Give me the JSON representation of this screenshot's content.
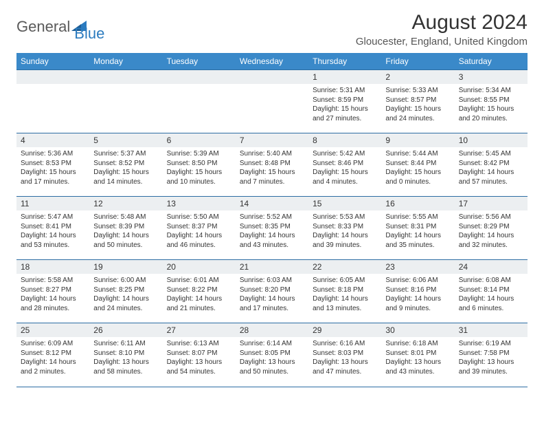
{
  "brand": {
    "left": "General",
    "right": "Blue"
  },
  "title": "August 2024",
  "location": "Gloucester, England, United Kingdom",
  "day_headers": [
    "Sunday",
    "Monday",
    "Tuesday",
    "Wednesday",
    "Thursday",
    "Friday",
    "Saturday"
  ],
  "colors": {
    "header_bg": "#3a89c9",
    "header_text": "#ffffff",
    "rule": "#2b6ca3",
    "daynum_bg": "#eceff1",
    "text": "#333333",
    "logo_gray": "#5a5a5a",
    "logo_blue": "#2b7bbf"
  },
  "weeks": [
    [
      null,
      null,
      null,
      null,
      {
        "n": "1",
        "sunrise": "5:31 AM",
        "sunset": "8:59 PM",
        "dl": "15 hours and 27 minutes."
      },
      {
        "n": "2",
        "sunrise": "5:33 AM",
        "sunset": "8:57 PM",
        "dl": "15 hours and 24 minutes."
      },
      {
        "n": "3",
        "sunrise": "5:34 AM",
        "sunset": "8:55 PM",
        "dl": "15 hours and 20 minutes."
      }
    ],
    [
      {
        "n": "4",
        "sunrise": "5:36 AM",
        "sunset": "8:53 PM",
        "dl": "15 hours and 17 minutes."
      },
      {
        "n": "5",
        "sunrise": "5:37 AM",
        "sunset": "8:52 PM",
        "dl": "15 hours and 14 minutes."
      },
      {
        "n": "6",
        "sunrise": "5:39 AM",
        "sunset": "8:50 PM",
        "dl": "15 hours and 10 minutes."
      },
      {
        "n": "7",
        "sunrise": "5:40 AM",
        "sunset": "8:48 PM",
        "dl": "15 hours and 7 minutes."
      },
      {
        "n": "8",
        "sunrise": "5:42 AM",
        "sunset": "8:46 PM",
        "dl": "15 hours and 4 minutes."
      },
      {
        "n": "9",
        "sunrise": "5:44 AM",
        "sunset": "8:44 PM",
        "dl": "15 hours and 0 minutes."
      },
      {
        "n": "10",
        "sunrise": "5:45 AM",
        "sunset": "8:42 PM",
        "dl": "14 hours and 57 minutes."
      }
    ],
    [
      {
        "n": "11",
        "sunrise": "5:47 AM",
        "sunset": "8:41 PM",
        "dl": "14 hours and 53 minutes."
      },
      {
        "n": "12",
        "sunrise": "5:48 AM",
        "sunset": "8:39 PM",
        "dl": "14 hours and 50 minutes."
      },
      {
        "n": "13",
        "sunrise": "5:50 AM",
        "sunset": "8:37 PM",
        "dl": "14 hours and 46 minutes."
      },
      {
        "n": "14",
        "sunrise": "5:52 AM",
        "sunset": "8:35 PM",
        "dl": "14 hours and 43 minutes."
      },
      {
        "n": "15",
        "sunrise": "5:53 AM",
        "sunset": "8:33 PM",
        "dl": "14 hours and 39 minutes."
      },
      {
        "n": "16",
        "sunrise": "5:55 AM",
        "sunset": "8:31 PM",
        "dl": "14 hours and 35 minutes."
      },
      {
        "n": "17",
        "sunrise": "5:56 AM",
        "sunset": "8:29 PM",
        "dl": "14 hours and 32 minutes."
      }
    ],
    [
      {
        "n": "18",
        "sunrise": "5:58 AM",
        "sunset": "8:27 PM",
        "dl": "14 hours and 28 minutes."
      },
      {
        "n": "19",
        "sunrise": "6:00 AM",
        "sunset": "8:25 PM",
        "dl": "14 hours and 24 minutes."
      },
      {
        "n": "20",
        "sunrise": "6:01 AM",
        "sunset": "8:22 PM",
        "dl": "14 hours and 21 minutes."
      },
      {
        "n": "21",
        "sunrise": "6:03 AM",
        "sunset": "8:20 PM",
        "dl": "14 hours and 17 minutes."
      },
      {
        "n": "22",
        "sunrise": "6:05 AM",
        "sunset": "8:18 PM",
        "dl": "14 hours and 13 minutes."
      },
      {
        "n": "23",
        "sunrise": "6:06 AM",
        "sunset": "8:16 PM",
        "dl": "14 hours and 9 minutes."
      },
      {
        "n": "24",
        "sunrise": "6:08 AM",
        "sunset": "8:14 PM",
        "dl": "14 hours and 6 minutes."
      }
    ],
    [
      {
        "n": "25",
        "sunrise": "6:09 AM",
        "sunset": "8:12 PM",
        "dl": "14 hours and 2 minutes."
      },
      {
        "n": "26",
        "sunrise": "6:11 AM",
        "sunset": "8:10 PM",
        "dl": "13 hours and 58 minutes."
      },
      {
        "n": "27",
        "sunrise": "6:13 AM",
        "sunset": "8:07 PM",
        "dl": "13 hours and 54 minutes."
      },
      {
        "n": "28",
        "sunrise": "6:14 AM",
        "sunset": "8:05 PM",
        "dl": "13 hours and 50 minutes."
      },
      {
        "n": "29",
        "sunrise": "6:16 AM",
        "sunset": "8:03 PM",
        "dl": "13 hours and 47 minutes."
      },
      {
        "n": "30",
        "sunrise": "6:18 AM",
        "sunset": "8:01 PM",
        "dl": "13 hours and 43 minutes."
      },
      {
        "n": "31",
        "sunrise": "6:19 AM",
        "sunset": "7:58 PM",
        "dl": "13 hours and 39 minutes."
      }
    ]
  ]
}
